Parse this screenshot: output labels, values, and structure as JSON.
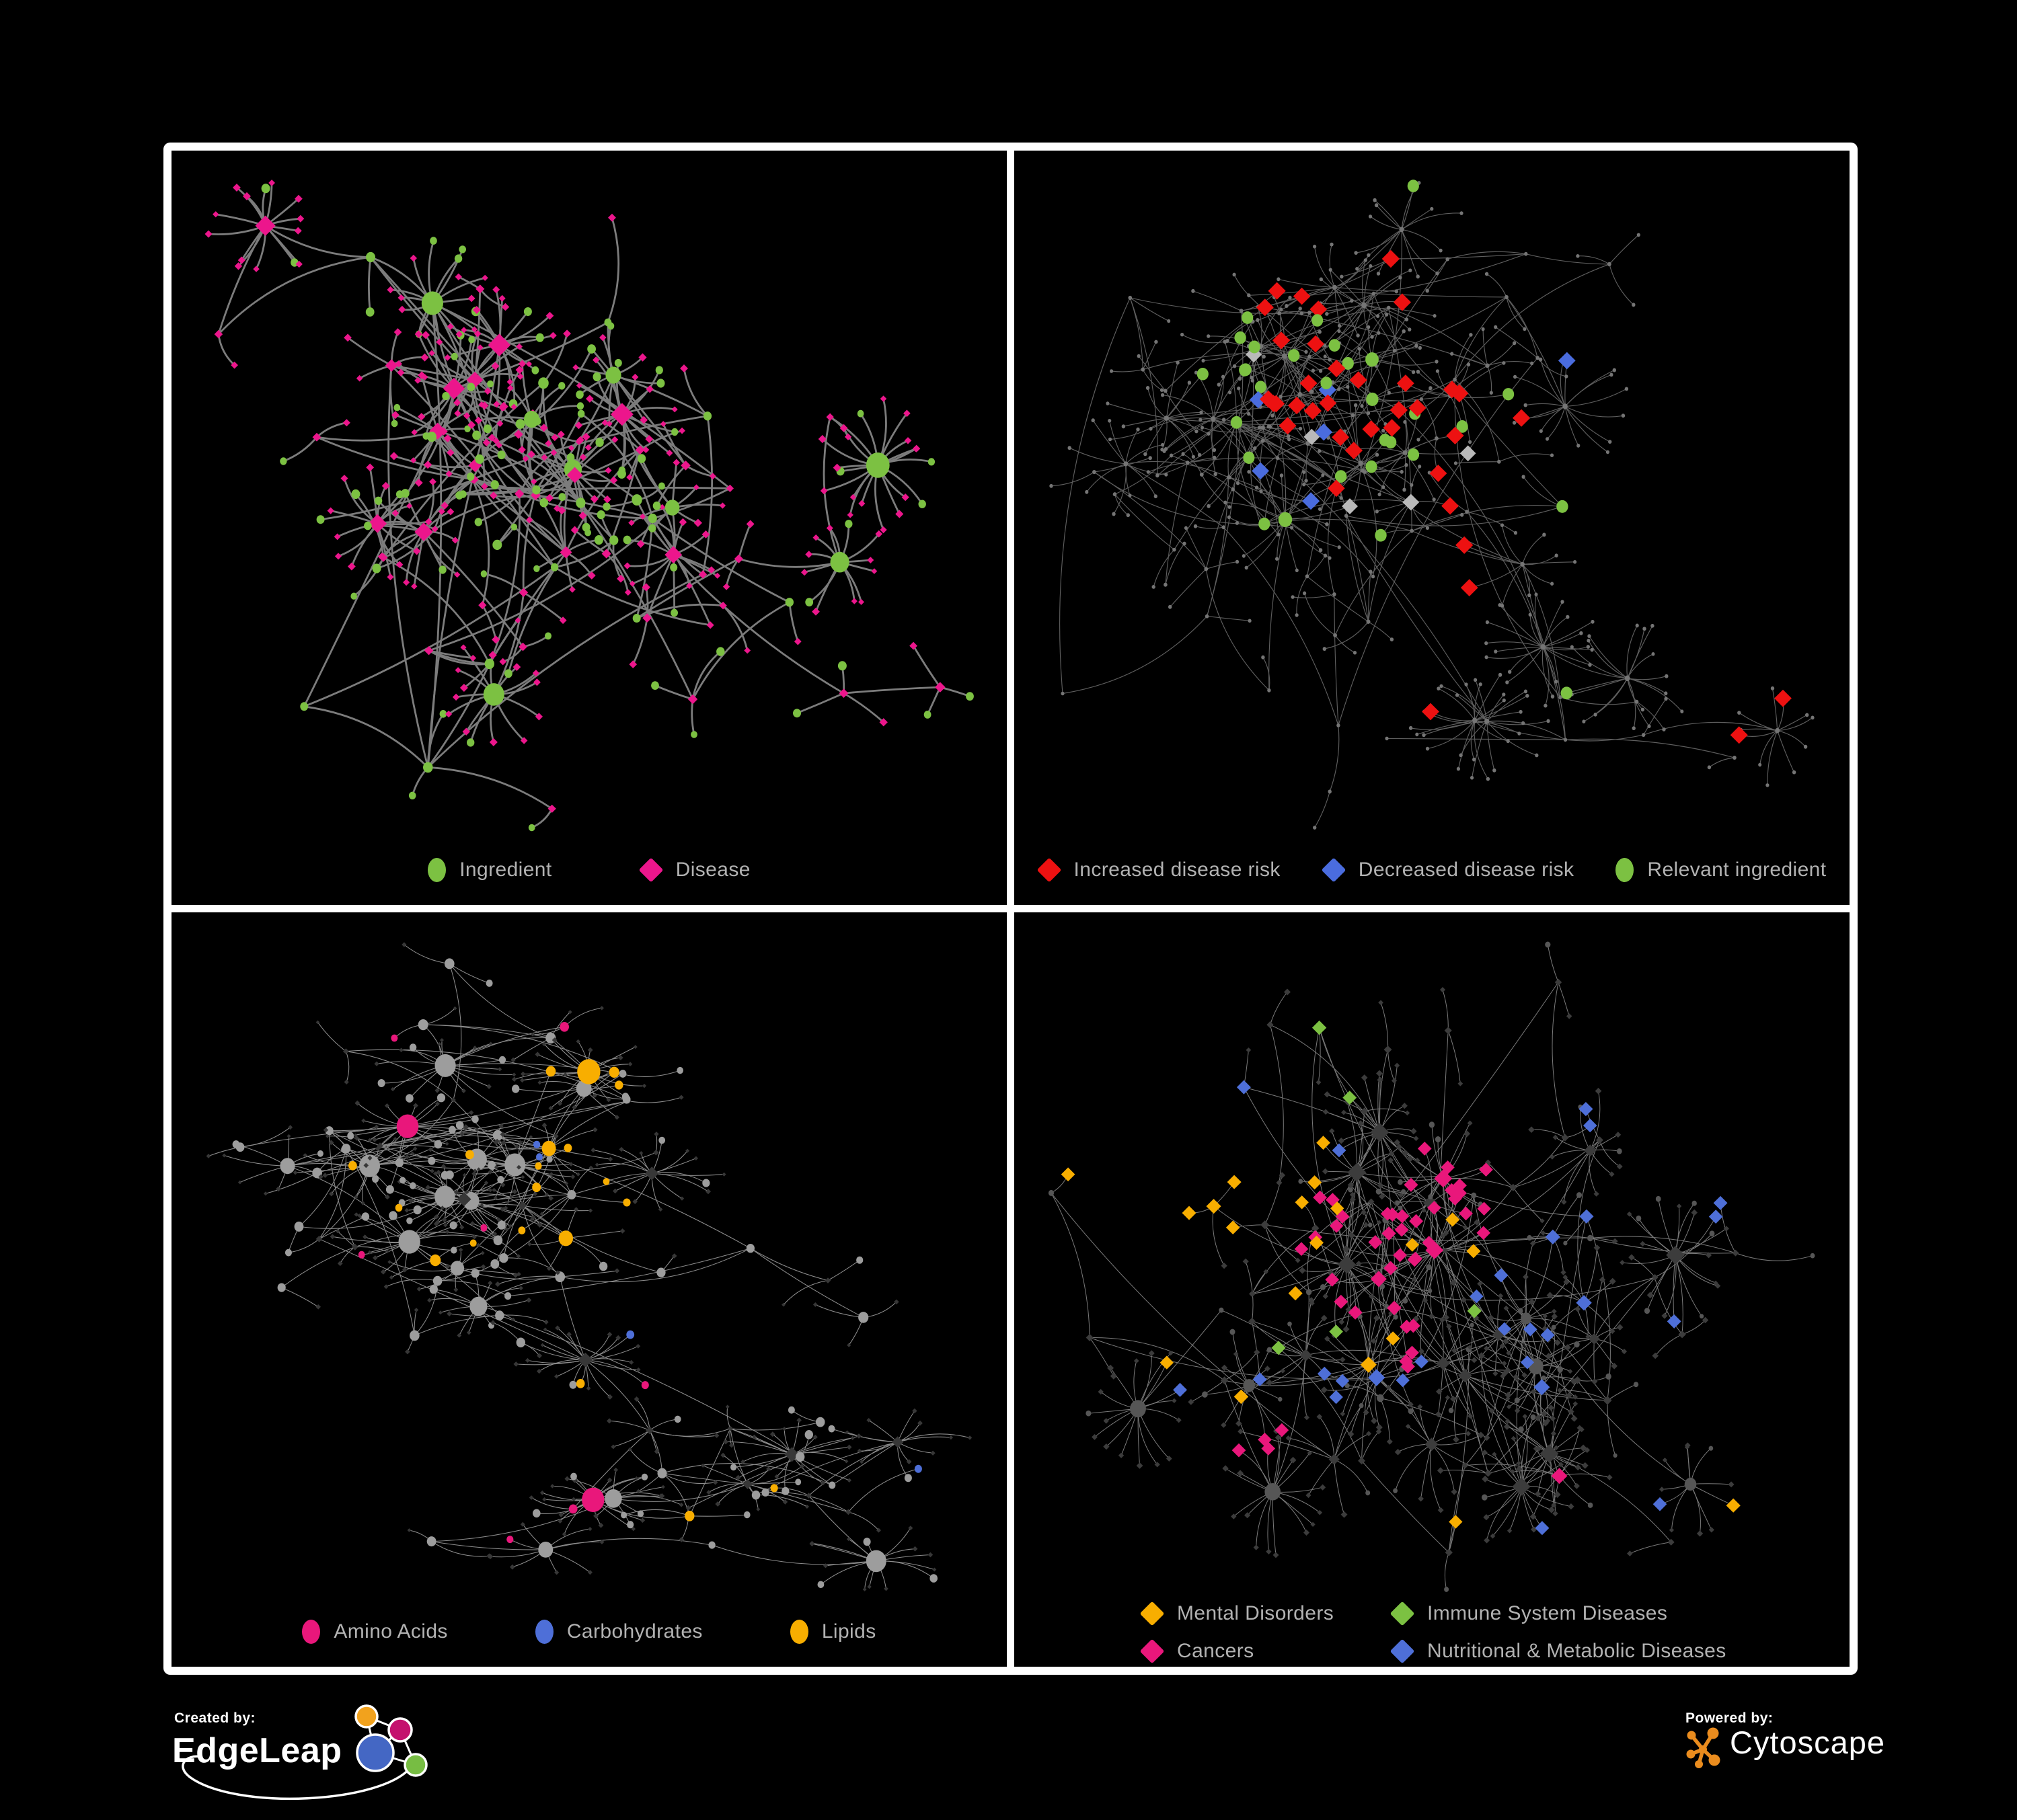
{
  "footer": {
    "created_by_label": "Created by:",
    "created_by_name": "EdgeLeap",
    "powered_by_label": "Powered by:",
    "powered_by_name": "Cytoscape"
  },
  "colors": {
    "ingredient_green": "#7CC142",
    "disease_pink": "#EC168C",
    "risk_red": "#ED1111",
    "risk_blue": "#4A6CDE",
    "neutral_gray": "#B9B9B9",
    "lipids_amber": "#F8AE00",
    "carbs_blue": "#4E6FD8",
    "amino_pink": "#E9177B",
    "panel_border": "#FFFFFF",
    "legend_text": "#B2B2B2"
  },
  "panels": [
    {
      "id": "ingredient-disease-network",
      "legendLayout": "row",
      "legendGap": 130,
      "legend": [
        {
          "label": "Ingredient",
          "shape": "ellipse",
          "color": "#7CC142"
        },
        {
          "label": "Disease",
          "shape": "diamond",
          "color": "#EC168C"
        }
      ],
      "gen": {
        "seed": 11,
        "backbone": 80,
        "hubProb": 0.3,
        "extra": 26,
        "circleProbInternal": 0.5,
        "circleProbLeaf": 0.28
      },
      "style": {
        "edge": "#7c7c7c",
        "edgeW": 2.8,
        "circle": {
          "color": "#7CC142",
          "mul": 1.1
        },
        "diamond": {
          "color": "#EC168C",
          "mul": 0.95
        }
      },
      "highlights": []
    },
    {
      "id": "disease-risk-network",
      "legendLayout": "row",
      "legendGap": 62,
      "legend": [
        {
          "label": "Increased disease risk",
          "shape": "diamond",
          "color": "#ED1111"
        },
        {
          "label": "Decreased disease risk",
          "shape": "diamond",
          "color": "#4A6CDE"
        },
        {
          "label": "Relevant ingredient",
          "shape": "ellipse",
          "color": "#7CC142"
        }
      ],
      "gen": {
        "seed": 23,
        "backbone": 100,
        "hubProb": 0.2,
        "extra": 30,
        "circleProbInternal": 0.4,
        "circleProbLeaf": 0.3
      },
      "style": {
        "edge": "#5e5e5e",
        "edgeW": 1.15,
        "dot": true,
        "dotColor": "#757575",
        "dotR": 2.2,
        "dotRR": 0.12
      },
      "highlights": [
        {
          "name": "increased-disease-risk",
          "shape": "diamond",
          "color": "#ED1111",
          "size": 12,
          "sizeR": 0.18,
          "pIn": 0.5,
          "pOut": 0.012,
          "centers": [
            [
              0.4,
              0.3,
              0.11
            ],
            [
              0.49,
              0.38,
              0.11
            ],
            [
              0.57,
              0.44,
              0.1
            ],
            [
              0.3,
              0.33,
              0.06
            ],
            [
              0.76,
              0.47,
              0.05
            ],
            [
              0.71,
              0.25,
              0.05
            ],
            [
              0.52,
              0.58,
              0.07
            ]
          ]
        },
        {
          "name": "decreased-disease-risk",
          "shape": "diamond",
          "color": "#4A6CDE",
          "size": 12,
          "sizeR": 0.18,
          "pIn": 0.55,
          "pOut": 0.004,
          "centers": [
            [
              0.33,
              0.35,
              0.055
            ],
            [
              0.31,
              0.44,
              0.05
            ],
            [
              0.88,
              0.17,
              0.04
            ]
          ]
        },
        {
          "name": "neutral-diamond",
          "shape": "diamond",
          "color": "#B9B9B9",
          "size": 11,
          "sizeR": 0.15,
          "pIn": 0.22,
          "pOut": 0.005,
          "centers": [
            [
              0.29,
              0.29,
              0.06
            ],
            [
              0.53,
              0.41,
              0.09
            ],
            [
              0.62,
              0.57,
              0.06
            ],
            [
              0.44,
              0.52,
              0.05
            ]
          ]
        },
        {
          "name": "relevant-ingredient",
          "shape": "circle",
          "color": "#7CC142",
          "size": 8.5,
          "sizeR": 0.15,
          "pIn": 0.6,
          "pOut": 0.02,
          "centers": [
            [
              0.37,
              0.33,
              0.1
            ],
            [
              0.5,
              0.38,
              0.12
            ],
            [
              0.67,
              0.55,
              0.06
            ],
            [
              0.3,
              0.52,
              0.05
            ],
            [
              0.25,
              0.3,
              0.06
            ]
          ]
        }
      ]
    },
    {
      "id": "nutrient-class-network",
      "legendLayout": "row",
      "legendGap": 130,
      "legend": [
        {
          "label": "Amino Acids",
          "shape": "ellipse",
          "color": "#E9177B"
        },
        {
          "label": "Carbohydrates",
          "shape": "ellipse",
          "color": "#4E6FD8"
        },
        {
          "label": "Lipids",
          "shape": "ellipse",
          "color": "#F8AE00"
        }
      ],
      "gen": {
        "seed": 35,
        "backbone": 85,
        "hubProb": 0.3,
        "extra": 30,
        "circleProbInternal": 0.8,
        "circleProbLeaf": 0.2
      },
      "style": {
        "edge": "#8c8c8c",
        "edgeW": 1.05,
        "circle": {
          "color": "#9d9d9d",
          "mul": 1.05
        },
        "diamond": {
          "color": "#373737",
          "mul": 0.62
        }
      },
      "highlights": [
        {
          "name": "lipids",
          "shape": "circle",
          "color": "#F8AE00",
          "sizeMul": 1.12,
          "pIn": 0.85,
          "pOut": 0.05,
          "centers": [
            [
              0.42,
              0.26,
              0.095
            ],
            [
              0.47,
              0.41,
              0.1
            ],
            [
              0.52,
              0.63,
              0.05
            ],
            [
              0.3,
              0.46,
              0.05
            ],
            [
              0.17,
              0.72,
              0.04
            ]
          ]
        },
        {
          "name": "carbohydrates",
          "shape": "circle",
          "color": "#4E6FD8",
          "sizeMul": 1.05,
          "pIn": 0.32,
          "pOut": 0.012,
          "centers": [
            [
              0.42,
              0.27,
              0.07
            ],
            [
              0.61,
              0.6,
              0.045
            ]
          ]
        },
        {
          "name": "amino-acids",
          "shape": "circle",
          "color": "#E9177B",
          "sizeMul": 1.05,
          "pIn": 0.22,
          "pOut": 0.035,
          "centers": [
            [
              0.25,
              0.43,
              0.06
            ],
            [
              0.55,
              0.75,
              0.08
            ],
            [
              0.86,
              0.3,
              0.05
            ]
          ]
        }
      ]
    },
    {
      "id": "disease-class-network",
      "legendLayout": "grid2",
      "legendGap": 0,
      "legend": [
        {
          "label": "Mental Disorders",
          "shape": "diamond",
          "color": "#F8AE00"
        },
        {
          "label": "Immune System Diseases",
          "shape": "diamond",
          "color": "#7CC142"
        },
        {
          "label": "Cancers",
          "shape": "diamond",
          "color": "#E9177B"
        },
        {
          "label": "Nutritional & Metabolic Diseases",
          "shape": "diamond",
          "color": "#4E6FD8"
        }
      ],
      "gen": {
        "seed": 47,
        "backbone": 90,
        "hubProb": 0.28,
        "extra": 34,
        "circleProbInternal": 0.2,
        "circleProbLeaf": 0.12
      },
      "style": {
        "edge": "#7a7a7a",
        "edgeW": 1.0,
        "circle": {
          "color": "#565656",
          "mul": 0.72
        },
        "diamond": {
          "color": "#3c3c3c",
          "mul": 0.78
        }
      },
      "highlights": [
        {
          "name": "mental-disorders",
          "shape": "diamond",
          "color": "#F8AE00",
          "size": 9,
          "sizeR": 0.25,
          "pIn": 0.85,
          "pOut": 0.015,
          "centers": [
            [
              0.16,
              0.38,
              0.13
            ],
            [
              0.24,
              0.29,
              0.08
            ]
          ]
        },
        {
          "name": "cancers",
          "shape": "diamond",
          "color": "#E9177B",
          "size": 9,
          "sizeR": 0.25,
          "pIn": 0.7,
          "pOut": 0.012,
          "centers": [
            [
              0.46,
              0.47,
              0.11
            ],
            [
              0.52,
              0.38,
              0.06
            ],
            [
              0.27,
              0.79,
              0.05
            ]
          ]
        },
        {
          "name": "nutritional-metabolic-diseases",
          "shape": "diamond",
          "color": "#4E6FD8",
          "size": 9,
          "sizeR": 0.25,
          "pIn": 0.55,
          "pOut": 0.03,
          "centers": [
            [
              0.63,
              0.55,
              0.09
            ],
            [
              0.78,
              0.3,
              0.09
            ],
            [
              0.86,
              0.43,
              0.06
            ],
            [
              0.43,
              0.68,
              0.06
            ],
            [
              0.36,
              0.19,
              0.05
            ]
          ]
        },
        {
          "name": "immune-system-diseases",
          "shape": "diamond",
          "color": "#7CC142",
          "size": 9,
          "sizeR": 0.25,
          "pIn": 0.12,
          "pOut": 0.008,
          "centers": [
            [
              0.52,
              0.3,
              0.06
            ],
            [
              0.33,
              0.62,
              0.05
            ]
          ]
        }
      ]
    }
  ]
}
